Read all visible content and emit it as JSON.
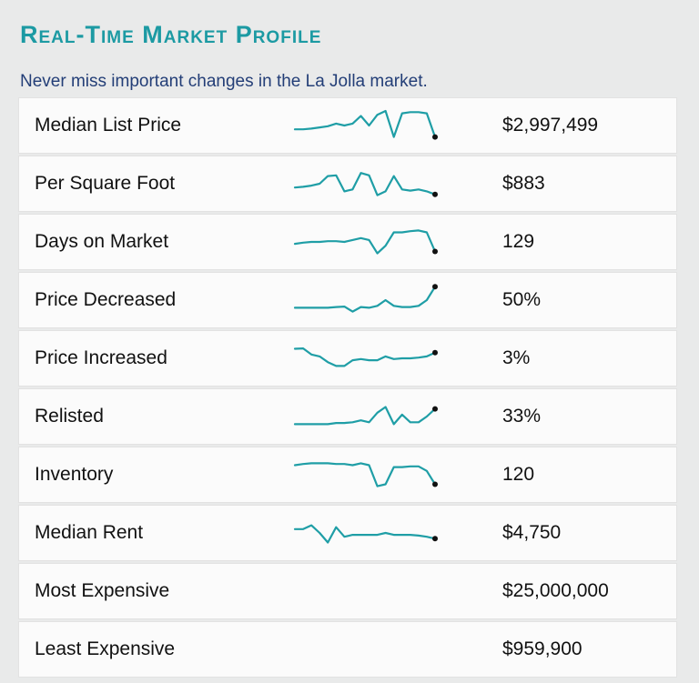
{
  "header": {
    "title": "Real-Time Market Profile",
    "subtitle": "Never miss important changes in the La Jolla market."
  },
  "colors": {
    "accent": "#1c9aa3",
    "subtitle": "#233e77",
    "sparkline": "#1f9ea6",
    "row_background": "#fbfbfb",
    "page_background": "#e9eaea"
  },
  "metrics": [
    {
      "label": "Median List Price",
      "value": "$2,997,499",
      "trend": [
        0.4,
        0.4,
        0.42,
        0.45,
        0.48,
        0.55,
        0.5,
        0.55,
        0.75,
        0.5,
        0.78,
        0.88,
        0.2,
        0.82,
        0.85,
        0.85,
        0.82,
        0.2
      ]
    },
    {
      "label": "Per Square Foot",
      "value": "$883",
      "trend": [
        0.4,
        0.42,
        0.45,
        0.5,
        0.7,
        0.72,
        0.3,
        0.35,
        0.78,
        0.72,
        0.2,
        0.3,
        0.7,
        0.35,
        0.32,
        0.35,
        0.3,
        0.22
      ]
    },
    {
      "label": "Days on Market",
      "value": "129",
      "trend": [
        0.45,
        0.48,
        0.5,
        0.5,
        0.52,
        0.52,
        0.5,
        0.55,
        0.6,
        0.55,
        0.2,
        0.4,
        0.75,
        0.75,
        0.78,
        0.8,
        0.75,
        0.25
      ]
    },
    {
      "label": "Price Decreased",
      "value": "50%",
      "trend": [
        0.3,
        0.3,
        0.3,
        0.3,
        0.3,
        0.32,
        0.33,
        0.2,
        0.32,
        0.3,
        0.35,
        0.5,
        0.35,
        0.32,
        0.32,
        0.35,
        0.5,
        0.85
      ]
    },
    {
      "label": "Price Increased",
      "value": "3%",
      "trend": [
        0.75,
        0.76,
        0.6,
        0.55,
        0.4,
        0.3,
        0.3,
        0.45,
        0.48,
        0.45,
        0.45,
        0.55,
        0.48,
        0.5,
        0.5,
        0.52,
        0.55,
        0.65
      ]
    },
    {
      "label": "Relisted",
      "value": "33%",
      "trend": [
        0.3,
        0.3,
        0.3,
        0.3,
        0.3,
        0.33,
        0.33,
        0.35,
        0.4,
        0.35,
        0.6,
        0.75,
        0.3,
        0.55,
        0.35,
        0.35,
        0.5,
        0.7
      ]
    },
    {
      "label": "Inventory",
      "value": "120",
      "trend": [
        0.75,
        0.78,
        0.8,
        0.8,
        0.8,
        0.78,
        0.78,
        0.75,
        0.8,
        0.75,
        0.2,
        0.25,
        0.7,
        0.7,
        0.72,
        0.72,
        0.6,
        0.25
      ]
    },
    {
      "label": "Median Rent",
      "value": "$4,750",
      "trend": [
        0.6,
        0.6,
        0.7,
        0.5,
        0.25,
        0.65,
        0.4,
        0.45,
        0.45,
        0.45,
        0.45,
        0.5,
        0.45,
        0.45,
        0.45,
        0.43,
        0.4,
        0.35
      ]
    },
    {
      "label": "Most Expensive",
      "value": "$25,000,000",
      "trend": []
    },
    {
      "label": "Least Expensive",
      "value": "$959,900",
      "trend": []
    }
  ]
}
